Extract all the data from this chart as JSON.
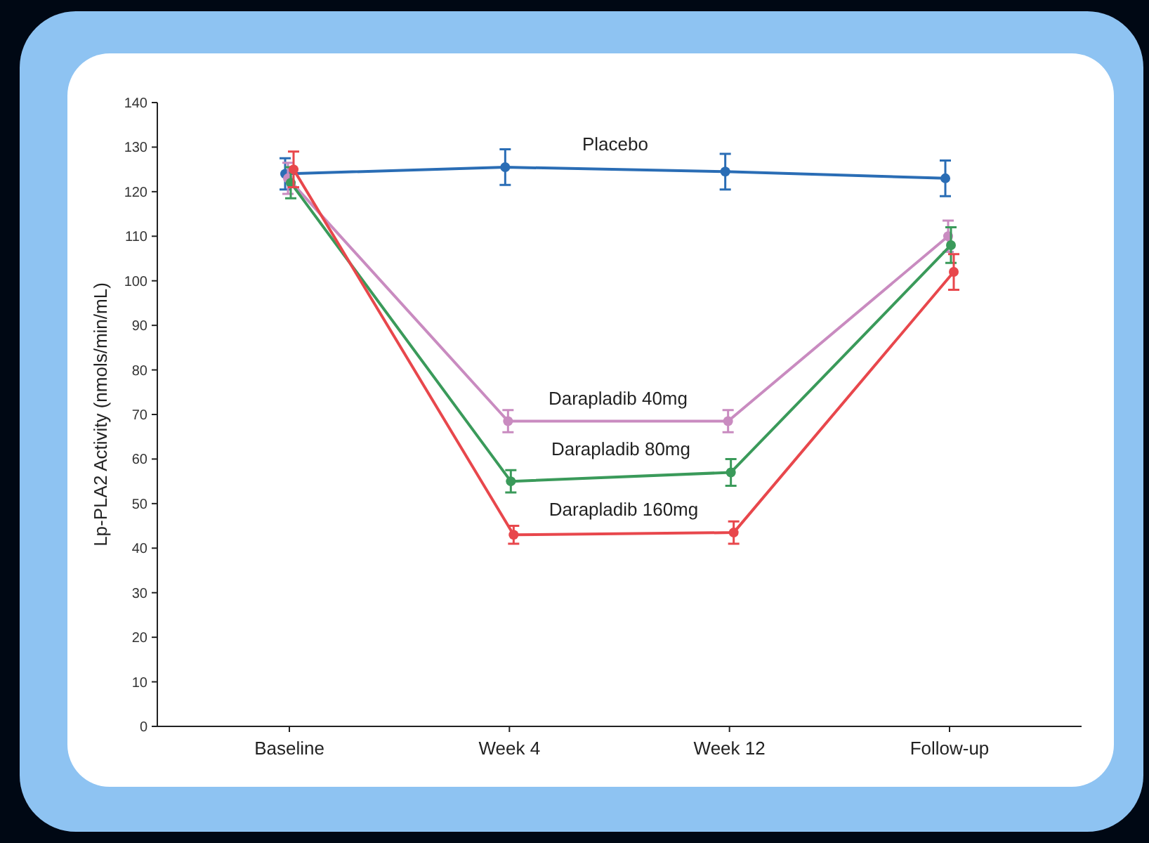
{
  "chart_data": {
    "type": "line",
    "ylabel": "Lp-PLA2 Activity (nmols/min/mL)",
    "categories": [
      "Baseline",
      "Week 4",
      "Week 12",
      "Follow-up"
    ],
    "ylim": [
      0,
      140
    ],
    "yticks": [
      0,
      10,
      20,
      30,
      40,
      50,
      60,
      70,
      80,
      90,
      100,
      110,
      120,
      130,
      140
    ],
    "marker": "circle",
    "series": [
      {
        "name": "Placebo",
        "color": "#2a6db5",
        "values": [
          124,
          125.5,
          124.5,
          123
        ],
        "errors": [
          3.5,
          4,
          4,
          4
        ]
      },
      {
        "name": "Darapladib 40mg",
        "color": "#c98bc0",
        "values": [
          123,
          68.5,
          68.5,
          110
        ],
        "errors": [
          3.5,
          2.5,
          2.5,
          3.5
        ]
      },
      {
        "name": "Darapladib 80mg",
        "color": "#3a9a5a",
        "values": [
          122,
          55,
          57,
          108
        ],
        "errors": [
          3.5,
          2.5,
          3,
          4
        ]
      },
      {
        "name": "Darapladib 160mg",
        "color": "#e8474c",
        "values": [
          125,
          43,
          43.5,
          102
        ],
        "errors": [
          4,
          2,
          2.5,
          4
        ]
      }
    ]
  }
}
